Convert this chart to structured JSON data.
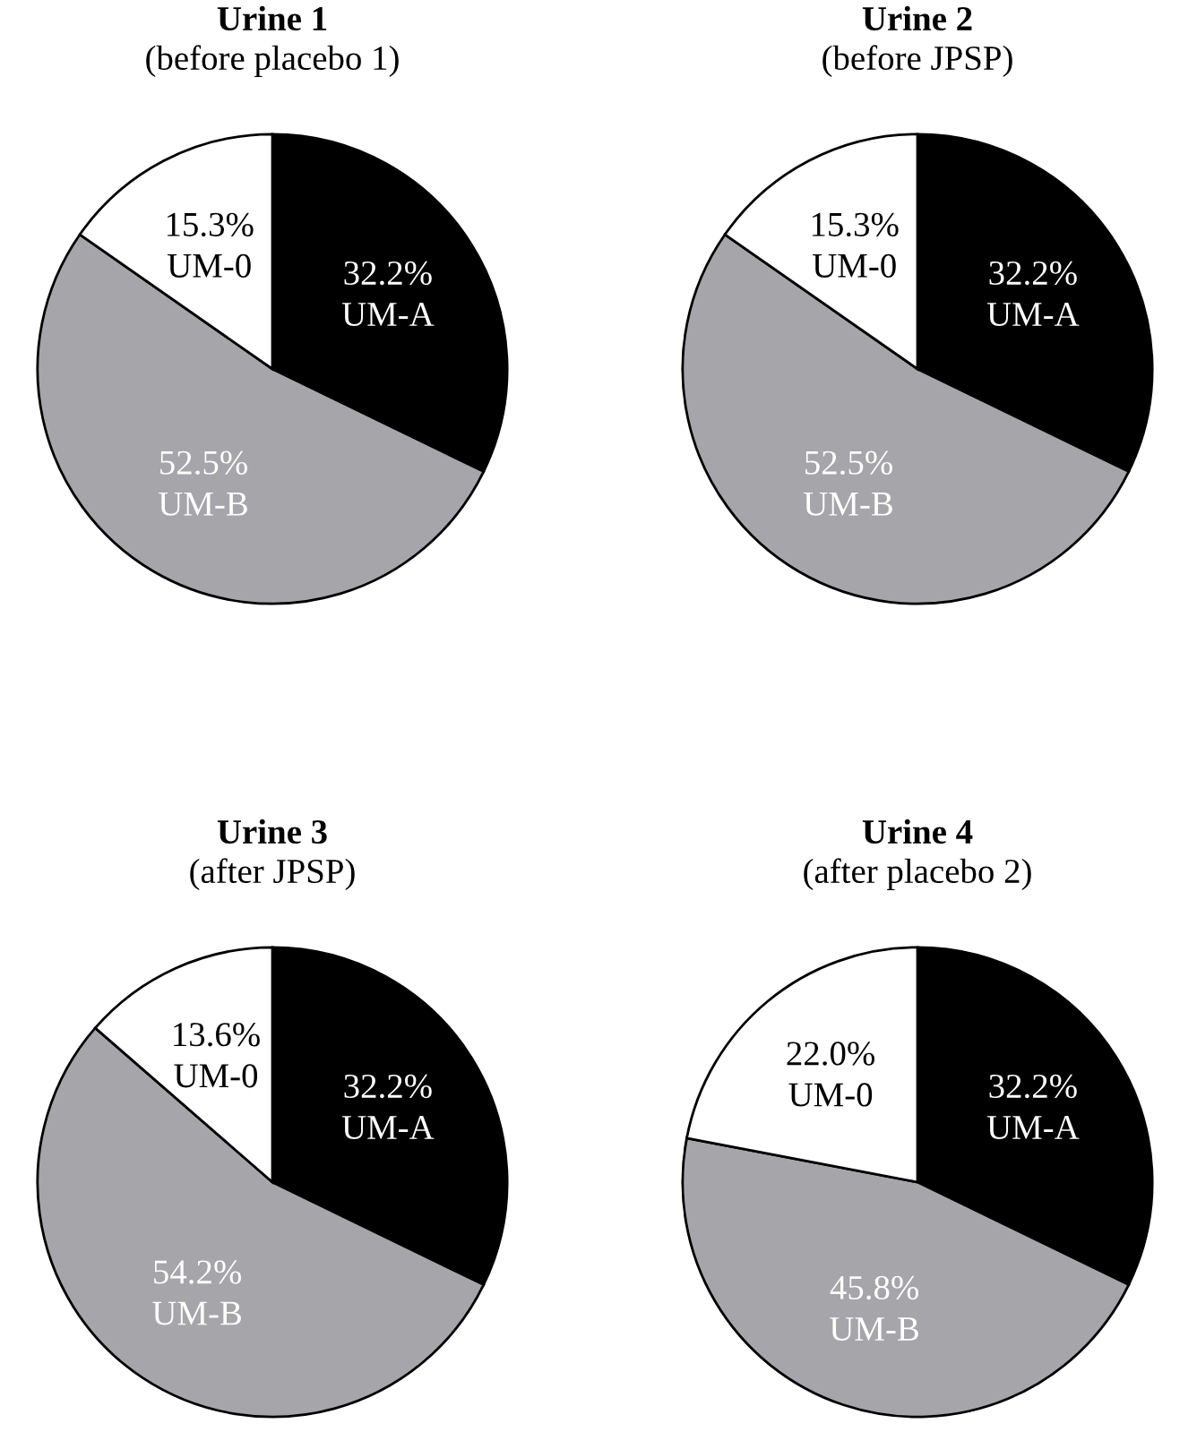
{
  "chart_data": [
    {
      "type": "pie",
      "title": "Urine 1",
      "subtitle": "(before placebo 1)",
      "categories": [
        "UM-A",
        "UM-B",
        "UM-0"
      ],
      "values": [
        32.2,
        52.5,
        15.3
      ],
      "value_labels": [
        "32.2%",
        "52.5%",
        "15.3%"
      ],
      "colors": [
        "#000000",
        "#a6a5a9",
        "#ffffff"
      ]
    },
    {
      "type": "pie",
      "title": "Urine 2",
      "subtitle": "(before JPSP)",
      "categories": [
        "UM-A",
        "UM-B",
        "UM-0"
      ],
      "values": [
        32.2,
        52.5,
        15.3
      ],
      "value_labels": [
        "32.2%",
        "52.5%",
        "15.3%"
      ],
      "colors": [
        "#000000",
        "#a6a5a9",
        "#ffffff"
      ]
    },
    {
      "type": "pie",
      "title": "Urine 3",
      "subtitle": "(after JPSP)",
      "categories": [
        "UM-A",
        "UM-B",
        "UM-0"
      ],
      "values": [
        32.2,
        54.2,
        13.6
      ],
      "value_labels": [
        "32.2%",
        "54.2%",
        "13.6%"
      ],
      "colors": [
        "#000000",
        "#a6a5a9",
        "#ffffff"
      ]
    },
    {
      "type": "pie",
      "title": "Urine 4",
      "subtitle": "(after placebo 2)",
      "categories": [
        "UM-A",
        "UM-B",
        "UM-0"
      ],
      "values": [
        32.2,
        45.8,
        22.0
      ],
      "value_labels": [
        "32.2%",
        "45.8%",
        "22.0%"
      ],
      "colors": [
        "#000000",
        "#a6a5a9",
        "#ffffff"
      ]
    }
  ]
}
